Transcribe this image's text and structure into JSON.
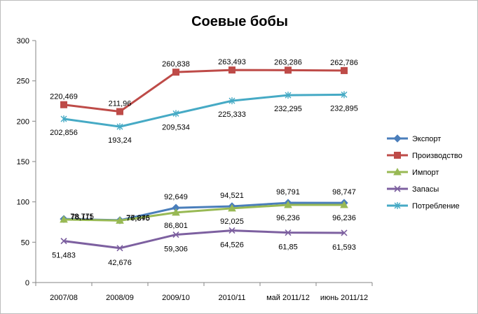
{
  "chart_data": {
    "type": "line",
    "title": "Соевые бобы",
    "xlabel": "",
    "ylabel": "",
    "categories": [
      "2007/08",
      "2008/09",
      "2009/10",
      "2010/11",
      "май 2011/12",
      "июнь 2011/12"
    ],
    "ylim": [
      0,
      300
    ],
    "yticks": [
      0,
      50,
      100,
      150,
      200,
      250,
      300
    ],
    "grid": false,
    "legend": "right",
    "series": [
      {
        "name": "Экспорт",
        "color": "#4a7ebb",
        "marker": "diamond",
        "values": [
          78.775,
          77.246,
          92.649,
          94.521,
          98.791,
          98.747
        ],
        "labels": [
          "78,775",
          "77,246",
          "92,649",
          "94,521",
          "98,791",
          "98,747"
        ]
      },
      {
        "name": "Производство",
        "color": "#be4b48",
        "marker": "square",
        "values": [
          220.469,
          211.96,
          260.838,
          263.493,
          263.286,
          262.786
        ],
        "labels": [
          "220,469",
          "211,96",
          "260,838",
          "263,493",
          "263,286",
          "262,786"
        ]
      },
      {
        "name": "Импорт",
        "color": "#98b954",
        "marker": "triangle",
        "values": [
          78.111,
          76.875,
          86.801,
          92.025,
          96.236,
          96.236
        ],
        "labels": [
          "78,111",
          "76,875",
          "86,801",
          "92,025",
          "96,236",
          "96,236"
        ]
      },
      {
        "name": "Запасы",
        "color": "#7d60a0",
        "marker": "x",
        "values": [
          51.483,
          42.676,
          59.306,
          64.526,
          61.85,
          61.593
        ],
        "labels": [
          "51,483",
          "42,676",
          "59,306",
          "64,526",
          "61,85",
          "61,593"
        ]
      },
      {
        "name": "Потребление",
        "color": "#46aac5",
        "marker": "star",
        "values": [
          202.856,
          193.24,
          209.534,
          225.333,
          232.295,
          232.895
        ],
        "labels": [
          "202,856",
          "193,24",
          "209,534",
          "225,333",
          "232,295",
          "232,895"
        ]
      }
    ]
  }
}
